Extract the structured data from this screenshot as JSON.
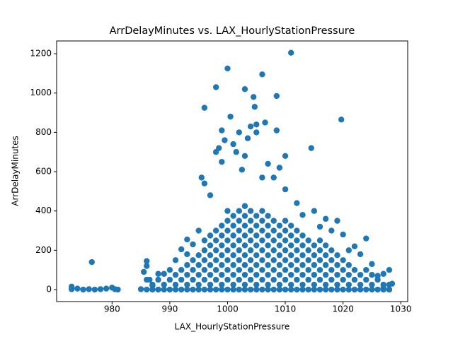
{
  "chart_data": {
    "type": "scatter",
    "title": "ArrDelayMinutes vs. LAX_HourlyStationPressure",
    "x_label": "LAX_HourlyStationPressure",
    "y_label": "ArrDelayMinutes",
    "color": "#1f77b4",
    "xlim": [
      970.4,
      1031.2
    ],
    "xticks": [
      980,
      990,
      1000,
      1010,
      1020,
      1030
    ],
    "ylim": [
      -61,
      1265
    ],
    "yticks": [
      0,
      200,
      400,
      600,
      800,
      1000,
      1200
    ],
    "x": [
      986,
      986,
      987,
      987,
      988,
      988,
      989,
      989,
      990,
      990,
      991,
      991,
      991,
      992,
      992,
      992,
      993,
      993,
      993,
      993,
      994,
      994,
      994,
      994,
      995,
      995,
      995,
      995,
      995,
      996,
      996,
      996,
      996,
      996,
      996,
      997,
      997,
      997,
      997,
      997,
      997,
      997,
      998,
      998,
      998,
      998,
      998,
      998,
      998,
      999,
      999,
      999,
      999,
      999,
      999,
      999,
      999,
      1000,
      1000,
      1000,
      1000,
      1000,
      1000,
      1000,
      1000,
      1000,
      1001,
      1001,
      1001,
      1001,
      1001,
      1001,
      1001,
      1001,
      1001,
      1002,
      1002,
      1002,
      1002,
      1002,
      1002,
      1002,
      1002,
      1002,
      1003,
      1003,
      1003,
      1003,
      1003,
      1003,
      1003,
      1003,
      1003,
      1003,
      1004,
      1004,
      1004,
      1004,
      1004,
      1004,
      1004,
      1004,
      1004,
      1005,
      1005,
      1005,
      1005,
      1005,
      1005,
      1005,
      1005,
      1005,
      1006,
      1006,
      1006,
      1006,
      1006,
      1006,
      1006,
      1006,
      1006,
      1007,
      1007,
      1007,
      1007,
      1007,
      1007,
      1007,
      1007,
      1007,
      1008,
      1008,
      1008,
      1008,
      1008,
      1008,
      1008,
      1008,
      1009,
      1009,
      1009,
      1009,
      1009,
      1009,
      1009,
      1009,
      1010,
      1010,
      1010,
      1010,
      1010,
      1010,
      1010,
      1010,
      1011,
      1011,
      1011,
      1011,
      1011,
      1011,
      1011,
      1011,
      1012,
      1012,
      1012,
      1012,
      1012,
      1012,
      1012,
      1013,
      1013,
      1013,
      1013,
      1013,
      1013,
      1013,
      1014,
      1014,
      1014,
      1014,
      1014,
      1014,
      1015,
      1015,
      1015,
      1015,
      1015,
      1015,
      1016,
      1016,
      1016,
      1016,
      1016,
      1016,
      1017,
      1017,
      1017,
      1017,
      1017,
      1017,
      1018,
      1018,
      1018,
      1018,
      1018,
      1019,
      1019,
      1019,
      1019,
      1019,
      1020,
      1020,
      1020,
      1020,
      1021,
      1021,
      1021,
      1021,
      1022,
      1022,
      1022,
      1023,
      1023,
      1023,
      1024,
      1024,
      1024,
      1025,
      1025,
      1025,
      1026,
      1026,
      1027,
      1027,
      1028,
      1028,
      973,
      973,
      974,
      975,
      976,
      976.5,
      977,
      978,
      979,
      980,
      980.5,
      981,
      985,
      985.5,
      986,
      986,
      986.5,
      987,
      988,
      989,
      990,
      991,
      992,
      993,
      993,
      994,
      995,
      995.5,
      996,
      996,
      997,
      998,
      998,
      998.5,
      999,
      999,
      999.5,
      1000,
      1000.5,
      1001,
      1001.5,
      1002,
      1002.5,
      1003,
      1003,
      1003.5,
      1004,
      1004.5,
      1004.7,
      1005,
      1005,
      1006,
      1006,
      1006.5,
      1007,
      1008,
      1008.5,
      1008.5,
      1009,
      1010,
      1010,
      1011,
      1012,
      1013,
      1014.5,
      1015,
      1016,
      1017,
      1018,
      1019,
      1020,
      1019.7,
      1021,
      1022,
      1023,
      1024,
      1025,
      1026,
      1027,
      1028,
      1028.5,
      1028,
      1027
    ],
    "y": [
      0,
      50,
      0,
      25,
      0,
      50,
      0,
      25,
      0,
      50,
      0,
      25,
      75,
      0,
      50,
      100,
      0,
      25,
      75,
      125,
      0,
      50,
      100,
      150,
      0,
      25,
      75,
      125,
      175,
      0,
      50,
      100,
      150,
      200,
      250,
      0,
      25,
      75,
      125,
      175,
      225,
      275,
      0,
      50,
      100,
      150,
      200,
      250,
      300,
      0,
      25,
      75,
      125,
      175,
      225,
      275,
      325,
      0,
      50,
      100,
      150,
      200,
      250,
      300,
      350,
      400,
      0,
      25,
      75,
      125,
      175,
      225,
      275,
      325,
      375,
      0,
      50,
      100,
      150,
      200,
      250,
      300,
      350,
      400,
      0,
      25,
      75,
      125,
      175,
      225,
      275,
      325,
      375,
      425,
      0,
      50,
      100,
      150,
      200,
      250,
      300,
      350,
      400,
      0,
      25,
      75,
      125,
      175,
      225,
      275,
      325,
      375,
      0,
      50,
      100,
      150,
      200,
      250,
      300,
      350,
      400,
      0,
      25,
      75,
      125,
      175,
      225,
      275,
      325,
      375,
      0,
      50,
      100,
      150,
      200,
      250,
      300,
      350,
      0,
      25,
      75,
      125,
      175,
      225,
      275,
      325,
      0,
      50,
      100,
      150,
      200,
      250,
      300,
      350,
      0,
      25,
      75,
      125,
      175,
      225,
      275,
      325,
      0,
      50,
      100,
      150,
      200,
      250,
      300,
      0,
      25,
      75,
      125,
      175,
      225,
      275,
      0,
      50,
      100,
      150,
      200,
      250,
      0,
      25,
      75,
      125,
      175,
      225,
      0,
      50,
      100,
      150,
      200,
      250,
      0,
      25,
      75,
      125,
      175,
      225,
      0,
      50,
      100,
      150,
      200,
      0,
      25,
      75,
      125,
      175,
      0,
      50,
      100,
      150,
      0,
      25,
      75,
      125,
      0,
      50,
      100,
      0,
      25,
      75,
      0,
      50,
      100,
      0,
      25,
      75,
      0,
      50,
      0,
      25,
      0,
      25,
      15,
      2,
      5,
      0,
      2,
      140,
      0,
      2,
      5,
      10,
      2,
      0,
      2,
      90,
      120,
      145,
      50,
      20,
      80,
      80,
      100,
      150,
      205,
      180,
      255,
      230,
      300,
      570,
      540,
      925,
      480,
      700,
      1030,
      720,
      810,
      650,
      760,
      1125,
      880,
      740,
      700,
      800,
      610,
      1020,
      680,
      770,
      830,
      980,
      930,
      840,
      800,
      1095,
      570,
      850,
      640,
      570,
      985,
      810,
      620,
      510,
      680,
      1205,
      440,
      380,
      720,
      400,
      320,
      360,
      300,
      350,
      280,
      865,
      200,
      220,
      180,
      260,
      130,
      70,
      80,
      100,
      30,
      0,
      10
    ]
  }
}
